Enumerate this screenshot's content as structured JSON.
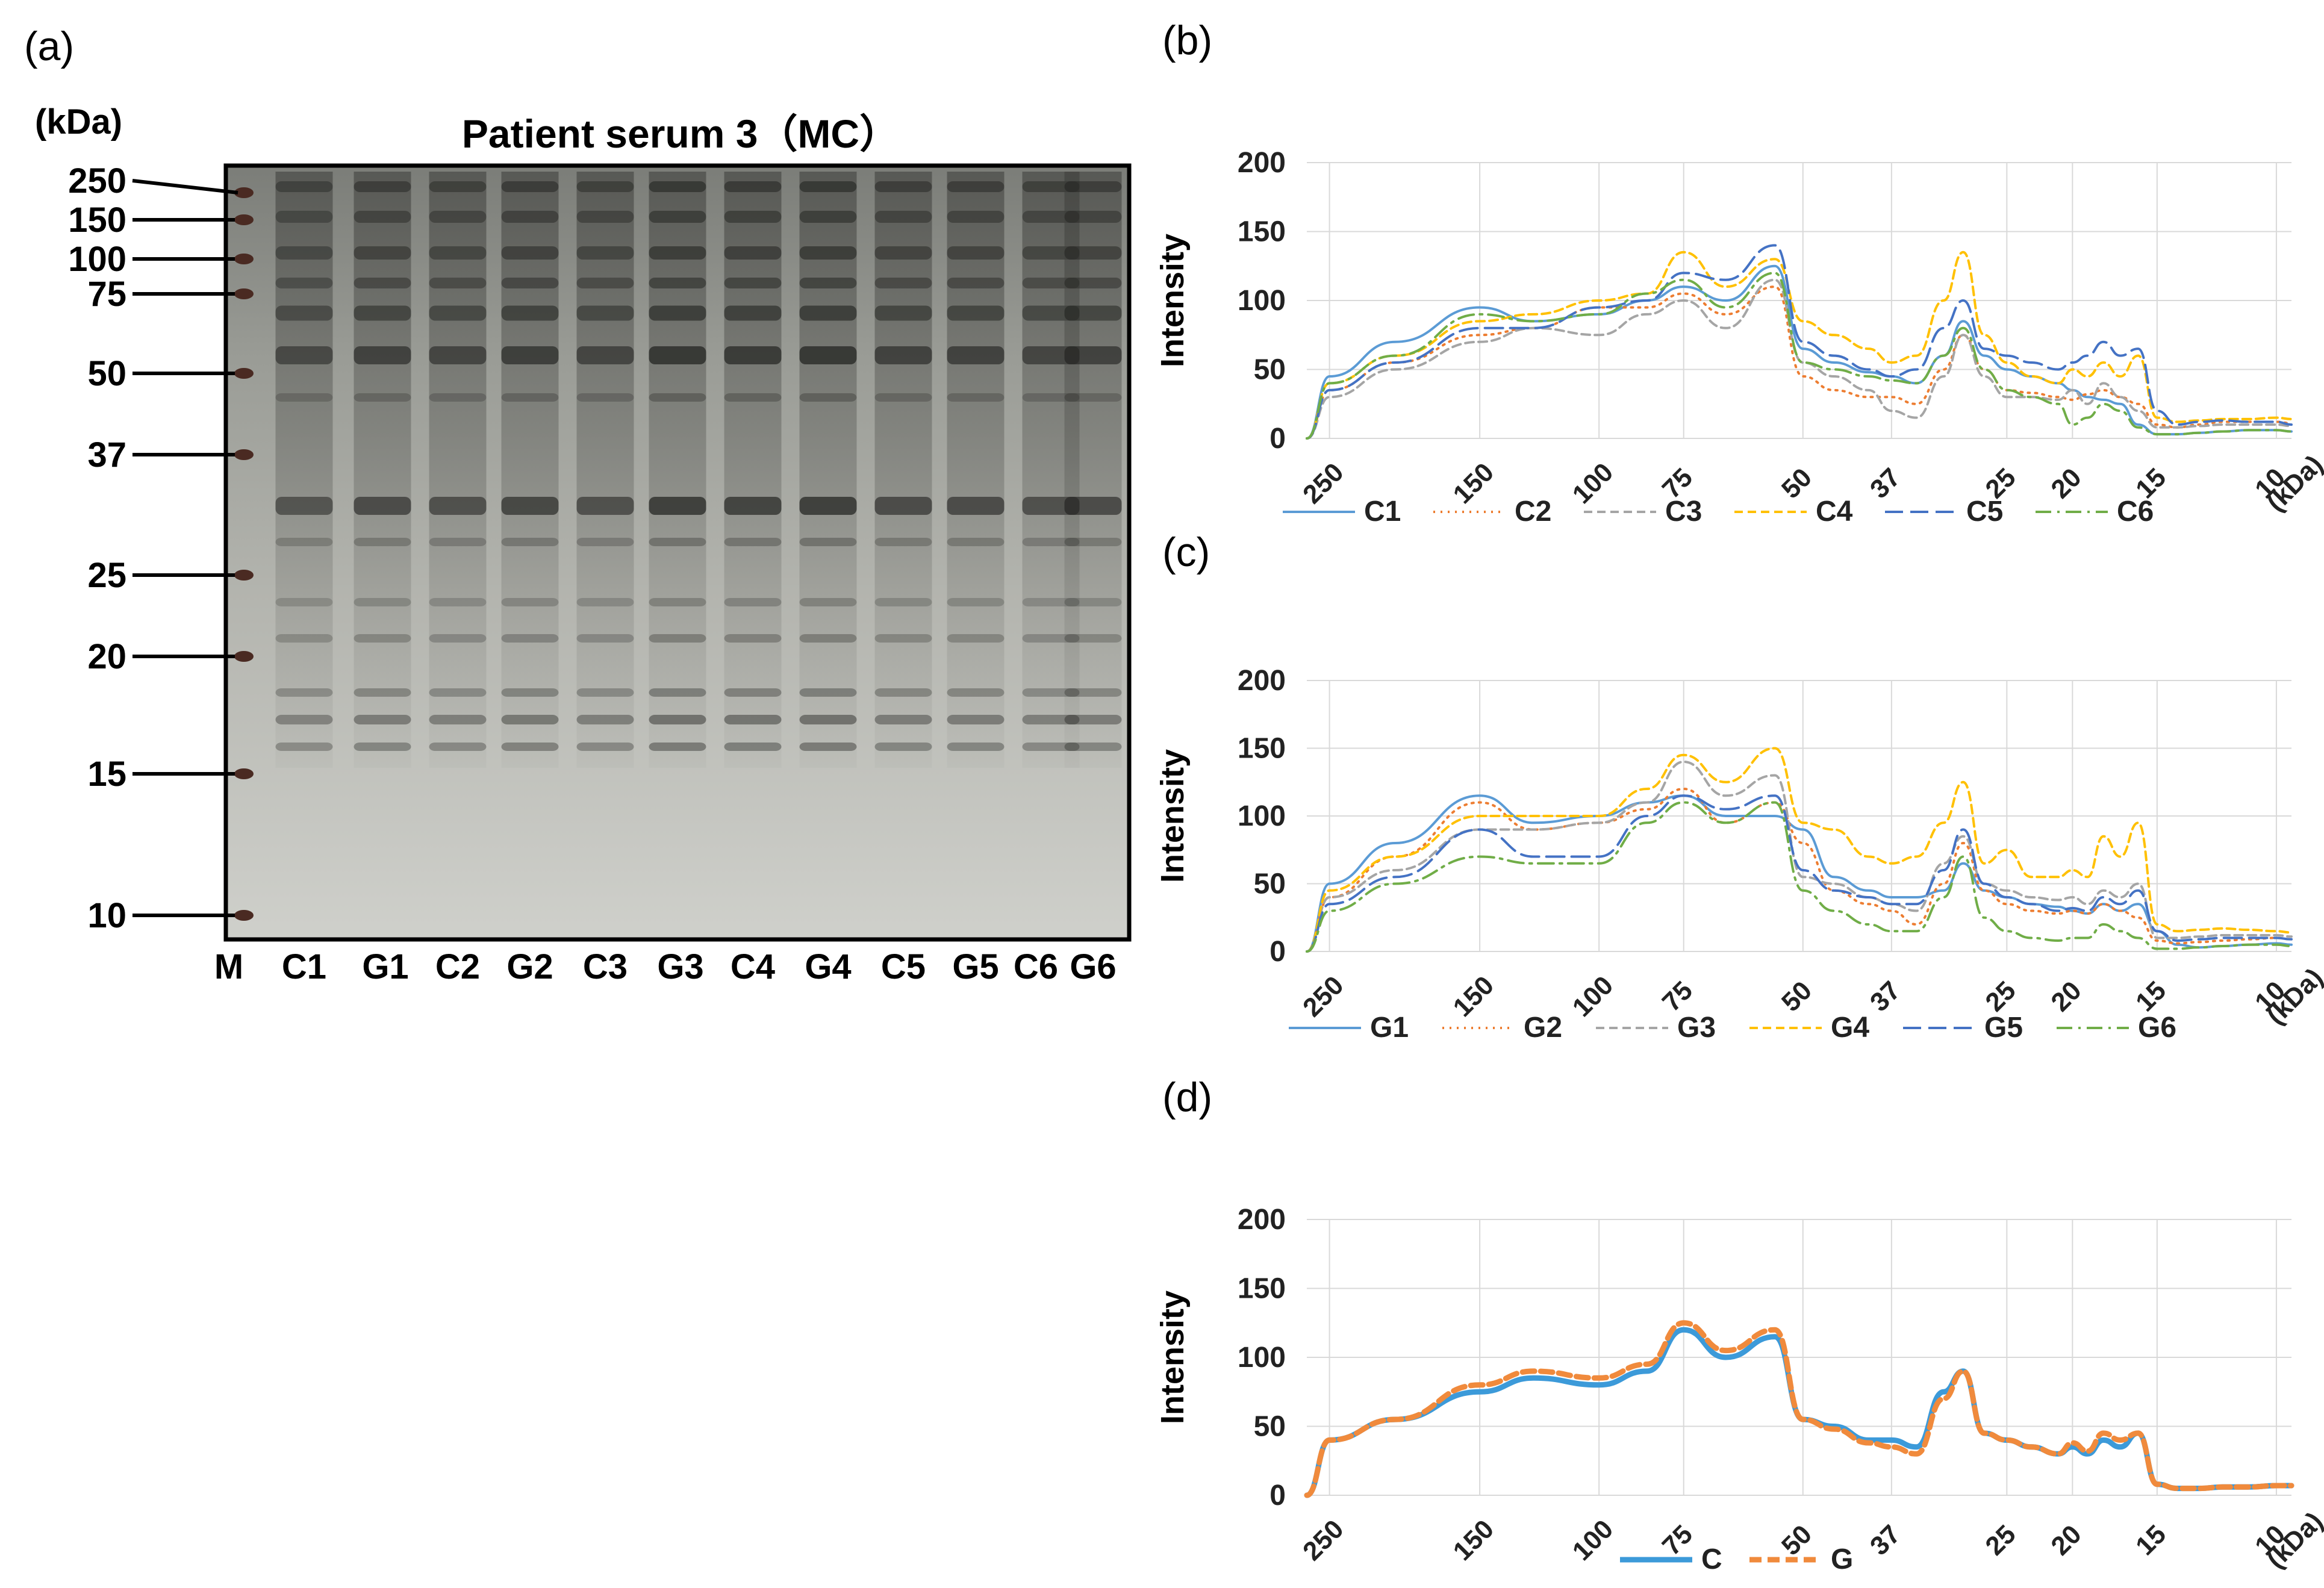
{
  "panel_a": {
    "label": "(a)",
    "title": "Patient serum 3（MC）",
    "unit": "(kDa)",
    "markers": [
      "250",
      "150",
      "100",
      "75",
      "50",
      "37",
      "25",
      "20",
      "15",
      "10"
    ],
    "lanes": [
      "M",
      "C1",
      "G1",
      "C2",
      "G2",
      "C3",
      "G3",
      "C4",
      "G4",
      "C5",
      "G5",
      "C6",
      "G6"
    ]
  },
  "panel_b_label": "(b)",
  "panel_c_label": "(c)",
  "panel_d_label": "(d)",
  "chart_data": [
    {
      "type": "line",
      "ylabel": "Intensity",
      "ylim": [
        0,
        200
      ],
      "yticks": [
        "0",
        "50",
        "100",
        "150",
        "200"
      ],
      "x_tick_labels": [
        "250",
        "150",
        "100",
        "75",
        "50",
        "37",
        "25",
        "20",
        "15",
        "10",
        "(kDa)"
      ],
      "x_markers_kDa": [
        250,
        150,
        100,
        75,
        50,
        37,
        25,
        20,
        15,
        10
      ],
      "grid": true,
      "legend": "bottom",
      "series": [
        {
          "name": "C1",
          "color": "#5B9BD5",
          "dash": "solid",
          "x": [
            270,
            250,
            200,
            150,
            125,
            100,
            85,
            75,
            65,
            55,
            50,
            45,
            40,
            37,
            34,
            31,
            29,
            27,
            25,
            23,
            21,
            20,
            19,
            18,
            17,
            16,
            15,
            14,
            13,
            12,
            11,
            10,
            9.5
          ],
          "y": [
            0,
            45,
            70,
            95,
            85,
            90,
            100,
            110,
            100,
            125,
            65,
            55,
            48,
            45,
            40,
            60,
            85,
            60,
            50,
            45,
            40,
            35,
            30,
            28,
            25,
            10,
            3,
            3,
            4,
            5,
            6,
            6,
            5
          ]
        },
        {
          "name": "C2",
          "color": "#ED7D31",
          "dash": "dotted",
          "x": [
            270,
            250,
            200,
            150,
            125,
            100,
            85,
            75,
            65,
            55,
            50,
            45,
            40,
            37,
            34,
            31,
            29,
            27,
            25,
            23,
            21,
            20,
            19,
            18,
            17,
            16,
            15,
            14,
            13,
            12,
            11,
            10,
            9.5
          ],
          "y": [
            0,
            35,
            55,
            75,
            80,
            95,
            95,
            105,
            90,
            110,
            45,
            35,
            30,
            30,
            25,
            50,
            75,
            50,
            35,
            33,
            30,
            28,
            32,
            35,
            30,
            25,
            10,
            8,
            10,
            12,
            12,
            12,
            11
          ]
        },
        {
          "name": "C3",
          "color": "#A5A5A5",
          "dash": "dash",
          "x": [
            270,
            250,
            200,
            150,
            125,
            100,
            85,
            75,
            65,
            55,
            50,
            45,
            40,
            37,
            34,
            31,
            29,
            27,
            25,
            23,
            21,
            20,
            19,
            18,
            17,
            16,
            15,
            14,
            13,
            12,
            11,
            10,
            9.5
          ],
          "y": [
            0,
            30,
            50,
            70,
            80,
            75,
            90,
            100,
            80,
            115,
            55,
            45,
            35,
            20,
            15,
            45,
            75,
            45,
            30,
            30,
            28,
            35,
            25,
            40,
            30,
            20,
            8,
            8,
            9,
            10,
            10,
            10,
            9
          ]
        },
        {
          "name": "C4",
          "color": "#FFC000",
          "dash": "dash",
          "x": [
            270,
            250,
            200,
            150,
            125,
            100,
            85,
            75,
            65,
            55,
            50,
            45,
            40,
            37,
            34,
            31,
            29,
            27,
            25,
            23,
            21,
            20,
            19,
            18,
            17,
            16,
            15,
            14,
            13,
            12,
            11,
            10,
            9.5
          ],
          "y": [
            0,
            40,
            60,
            85,
            90,
            100,
            105,
            135,
            110,
            130,
            85,
            75,
            65,
            55,
            60,
            100,
            135,
            75,
            55,
            45,
            40,
            50,
            45,
            55,
            45,
            60,
            15,
            12,
            13,
            14,
            14,
            15,
            14
          ]
        },
        {
          "name": "C5",
          "color": "#4472C4",
          "dash": "longdash",
          "x": [
            270,
            250,
            200,
            150,
            125,
            100,
            85,
            75,
            65,
            55,
            50,
            45,
            40,
            37,
            34,
            31,
            29,
            27,
            25,
            23,
            21,
            20,
            19,
            18,
            17,
            16,
            15,
            14,
            13,
            12,
            11,
            10,
            9.5
          ],
          "y": [
            0,
            35,
            55,
            80,
            80,
            95,
            100,
            120,
            115,
            140,
            70,
            60,
            50,
            45,
            50,
            80,
            100,
            65,
            60,
            55,
            50,
            55,
            60,
            70,
            60,
            65,
            20,
            10,
            12,
            13,
            12,
            12,
            10
          ]
        },
        {
          "name": "C6",
          "color": "#70AD47",
          "dash": "dashdot",
          "x": [
            270,
            250,
            200,
            150,
            125,
            100,
            85,
            75,
            65,
            55,
            50,
            45,
            40,
            37,
            34,
            31,
            29,
            27,
            25,
            23,
            21,
            20,
            19,
            18,
            17,
            16,
            15,
            14,
            13,
            12,
            11,
            10,
            9.5
          ],
          "y": [
            0,
            40,
            60,
            90,
            85,
            90,
            105,
            115,
            95,
            120,
            55,
            50,
            45,
            42,
            40,
            60,
            80,
            50,
            35,
            30,
            25,
            10,
            15,
            25,
            20,
            8,
            3,
            3,
            4,
            5,
            6,
            6,
            5
          ]
        }
      ]
    },
    {
      "type": "line",
      "ylabel": "Intensity",
      "ylim": [
        0,
        200
      ],
      "yticks": [
        "0",
        "50",
        "100",
        "150",
        "200"
      ],
      "x_tick_labels": [
        "250",
        "150",
        "100",
        "75",
        "50",
        "37",
        "25",
        "20",
        "15",
        "10",
        "(kDa)"
      ],
      "x_markers_kDa": [
        250,
        150,
        100,
        75,
        50,
        37,
        25,
        20,
        15,
        10
      ],
      "grid": true,
      "legend": "bottom",
      "series": [
        {
          "name": "G1",
          "color": "#5B9BD5",
          "dash": "solid",
          "x": [
            270,
            250,
            200,
            150,
            125,
            100,
            85,
            75,
            65,
            55,
            50,
            45,
            40,
            37,
            34,
            31,
            29,
            27,
            25,
            23,
            21,
            20,
            19,
            18,
            17,
            16,
            15,
            14,
            13,
            12,
            11,
            10,
            9.5
          ],
          "y": [
            0,
            50,
            80,
            115,
            95,
            100,
            110,
            115,
            100,
            100,
            90,
            55,
            45,
            40,
            40,
            45,
            65,
            45,
            40,
            35,
            33,
            30,
            28,
            35,
            30,
            35,
            15,
            5,
            3,
            4,
            5,
            6,
            5
          ]
        },
        {
          "name": "G2",
          "color": "#ED7D31",
          "dash": "dotted",
          "x": [
            270,
            250,
            200,
            150,
            125,
            100,
            85,
            75,
            65,
            55,
            50,
            45,
            40,
            37,
            34,
            31,
            29,
            27,
            25,
            23,
            21,
            20,
            19,
            18,
            17,
            16,
            15,
            14,
            13,
            12,
            11,
            10,
            9.5
          ],
          "y": [
            0,
            40,
            70,
            110,
            90,
            95,
            105,
            120,
            95,
            110,
            80,
            45,
            35,
            30,
            20,
            50,
            80,
            45,
            35,
            30,
            28,
            30,
            28,
            35,
            30,
            25,
            8,
            6,
            7,
            8,
            9,
            10,
            9
          ]
        },
        {
          "name": "G3",
          "color": "#A5A5A5",
          "dash": "dash",
          "x": [
            270,
            250,
            200,
            150,
            125,
            100,
            85,
            75,
            65,
            55,
            50,
            45,
            40,
            37,
            34,
            31,
            29,
            27,
            25,
            23,
            21,
            20,
            19,
            18,
            17,
            16,
            15,
            14,
            13,
            12,
            11,
            10,
            9.5
          ],
          "y": [
            0,
            40,
            60,
            90,
            90,
            95,
            110,
            140,
            115,
            130,
            55,
            50,
            40,
            35,
            30,
            65,
            85,
            50,
            45,
            40,
            38,
            40,
            35,
            45,
            40,
            50,
            10,
            10,
            11,
            12,
            12,
            12,
            11
          ]
        },
        {
          "name": "G4",
          "color": "#FFC000",
          "dash": "dash",
          "x": [
            270,
            250,
            200,
            150,
            125,
            100,
            85,
            75,
            65,
            55,
            50,
            45,
            40,
            37,
            34,
            31,
            29,
            27,
            25,
            23,
            21,
            20,
            19,
            18,
            17,
            16,
            15,
            14,
            13,
            12,
            11,
            10,
            9.5
          ],
          "y": [
            0,
            45,
            70,
            100,
            100,
            100,
            120,
            145,
            125,
            150,
            95,
            90,
            70,
            65,
            70,
            95,
            125,
            65,
            75,
            55,
            55,
            60,
            55,
            85,
            70,
            95,
            20,
            15,
            16,
            17,
            16,
            15,
            14
          ]
        },
        {
          "name": "G5",
          "color": "#4472C4",
          "dash": "longdash",
          "x": [
            270,
            250,
            200,
            150,
            125,
            100,
            85,
            75,
            65,
            55,
            50,
            45,
            40,
            37,
            34,
            31,
            29,
            27,
            25,
            23,
            21,
            20,
            19,
            18,
            17,
            16,
            15,
            14,
            13,
            12,
            11,
            10,
            9.5
          ],
          "y": [
            0,
            35,
            55,
            90,
            70,
            70,
            100,
            115,
            105,
            115,
            60,
            45,
            40,
            35,
            35,
            60,
            90,
            50,
            40,
            35,
            30,
            32,
            30,
            40,
            35,
            45,
            15,
            8,
            9,
            10,
            10,
            10,
            9
          ]
        },
        {
          "name": "G6",
          "color": "#70AD47",
          "dash": "dashdot",
          "x": [
            270,
            250,
            200,
            150,
            125,
            100,
            85,
            75,
            65,
            55,
            50,
            45,
            40,
            37,
            34,
            31,
            29,
            27,
            25,
            23,
            21,
            20,
            19,
            18,
            17,
            16,
            15,
            14,
            13,
            12,
            11,
            10,
            9.5
          ],
          "y": [
            0,
            30,
            50,
            70,
            65,
            65,
            95,
            110,
            95,
            110,
            45,
            30,
            20,
            15,
            15,
            40,
            70,
            25,
            15,
            10,
            8,
            10,
            10,
            20,
            15,
            10,
            2,
            2,
            3,
            4,
            5,
            5,
            4
          ]
        }
      ]
    },
    {
      "type": "line",
      "ylabel": "Intensity",
      "ylim": [
        0,
        200
      ],
      "yticks": [
        "0",
        "50",
        "100",
        "150",
        "200"
      ],
      "x_tick_labels": [
        "250",
        "150",
        "100",
        "75",
        "50",
        "37",
        "25",
        "20",
        "15",
        "10",
        "(kDa)"
      ],
      "x_markers_kDa": [
        250,
        150,
        100,
        75,
        50,
        37,
        25,
        20,
        15,
        10
      ],
      "grid": true,
      "legend": "bottom",
      "series": [
        {
          "name": "C",
          "color": "#3C9AD9",
          "dash": "solid",
          "x": [
            270,
            250,
            200,
            150,
            125,
            100,
            85,
            75,
            65,
            55,
            50,
            45,
            40,
            37,
            34,
            31,
            29,
            27,
            25,
            23,
            21,
            20,
            19,
            18,
            17,
            16,
            15,
            14,
            13,
            12,
            11,
            10,
            9.5
          ],
          "y": [
            0,
            40,
            55,
            75,
            85,
            80,
            90,
            120,
            100,
            115,
            55,
            50,
            40,
            40,
            35,
            75,
            90,
            45,
            40,
            35,
            30,
            35,
            30,
            40,
            35,
            45,
            8,
            5,
            5,
            6,
            6,
            7,
            7
          ]
        },
        {
          "name": "G",
          "color": "#F08A3C",
          "dash": "bigdash",
          "x": [
            270,
            250,
            200,
            150,
            125,
            100,
            85,
            75,
            65,
            55,
            50,
            45,
            40,
            37,
            34,
            31,
            29,
            27,
            25,
            23,
            21,
            20,
            19,
            18,
            17,
            16,
            15,
            14,
            13,
            12,
            11,
            10,
            9.5
          ],
          "y": [
            0,
            40,
            55,
            80,
            90,
            85,
            95,
            125,
            105,
            120,
            55,
            48,
            38,
            35,
            30,
            70,
            90,
            45,
            40,
            35,
            30,
            38,
            32,
            45,
            40,
            45,
            8,
            5,
            5,
            6,
            6,
            7,
            7
          ]
        }
      ]
    }
  ]
}
